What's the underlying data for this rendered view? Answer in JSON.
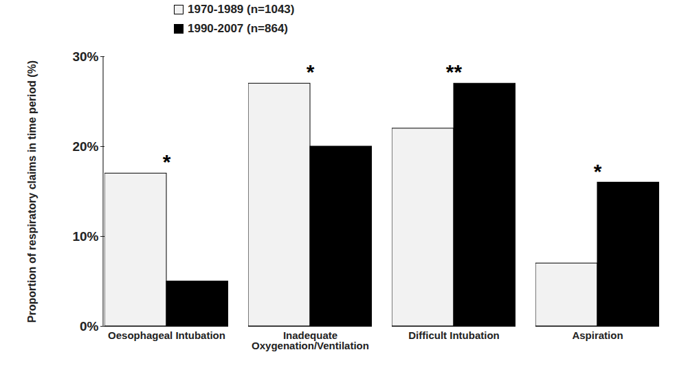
{
  "chart_data": {
    "type": "bar",
    "categories": [
      "Oesophageal Intubation",
      "Inadequate Oxygenation/Ventilation",
      "Difficult Intubation",
      "Aspiration"
    ],
    "series": [
      {
        "name": "1970-1989 (n=1043)",
        "color": "#f2f2f2",
        "values": [
          17,
          27,
          22,
          7
        ]
      },
      {
        "name": "1990-2007 (n=864)",
        "color": "#000000",
        "values": [
          5,
          20,
          27,
          16
        ]
      }
    ],
    "ylabel": "Proportion of respiratory claims in time period (%)",
    "ylim": [
      0,
      30
    ],
    "yticks": [
      {
        "value": 0,
        "label": "0%"
      },
      {
        "value": 10,
        "label": "10%"
      },
      {
        "value": 20,
        "label": "20%"
      },
      {
        "value": 30,
        "label": "30%"
      }
    ],
    "annotations": [
      {
        "category": "Oesophageal Intubation",
        "text": "*"
      },
      {
        "category": "Inadequate Oxygenation/Ventilation",
        "text": "*"
      },
      {
        "category": "Difficult Intubation",
        "text": "**"
      },
      {
        "category": "Aspiration",
        "text": "*"
      }
    ],
    "legend": "top-left",
    "grid": false
  }
}
